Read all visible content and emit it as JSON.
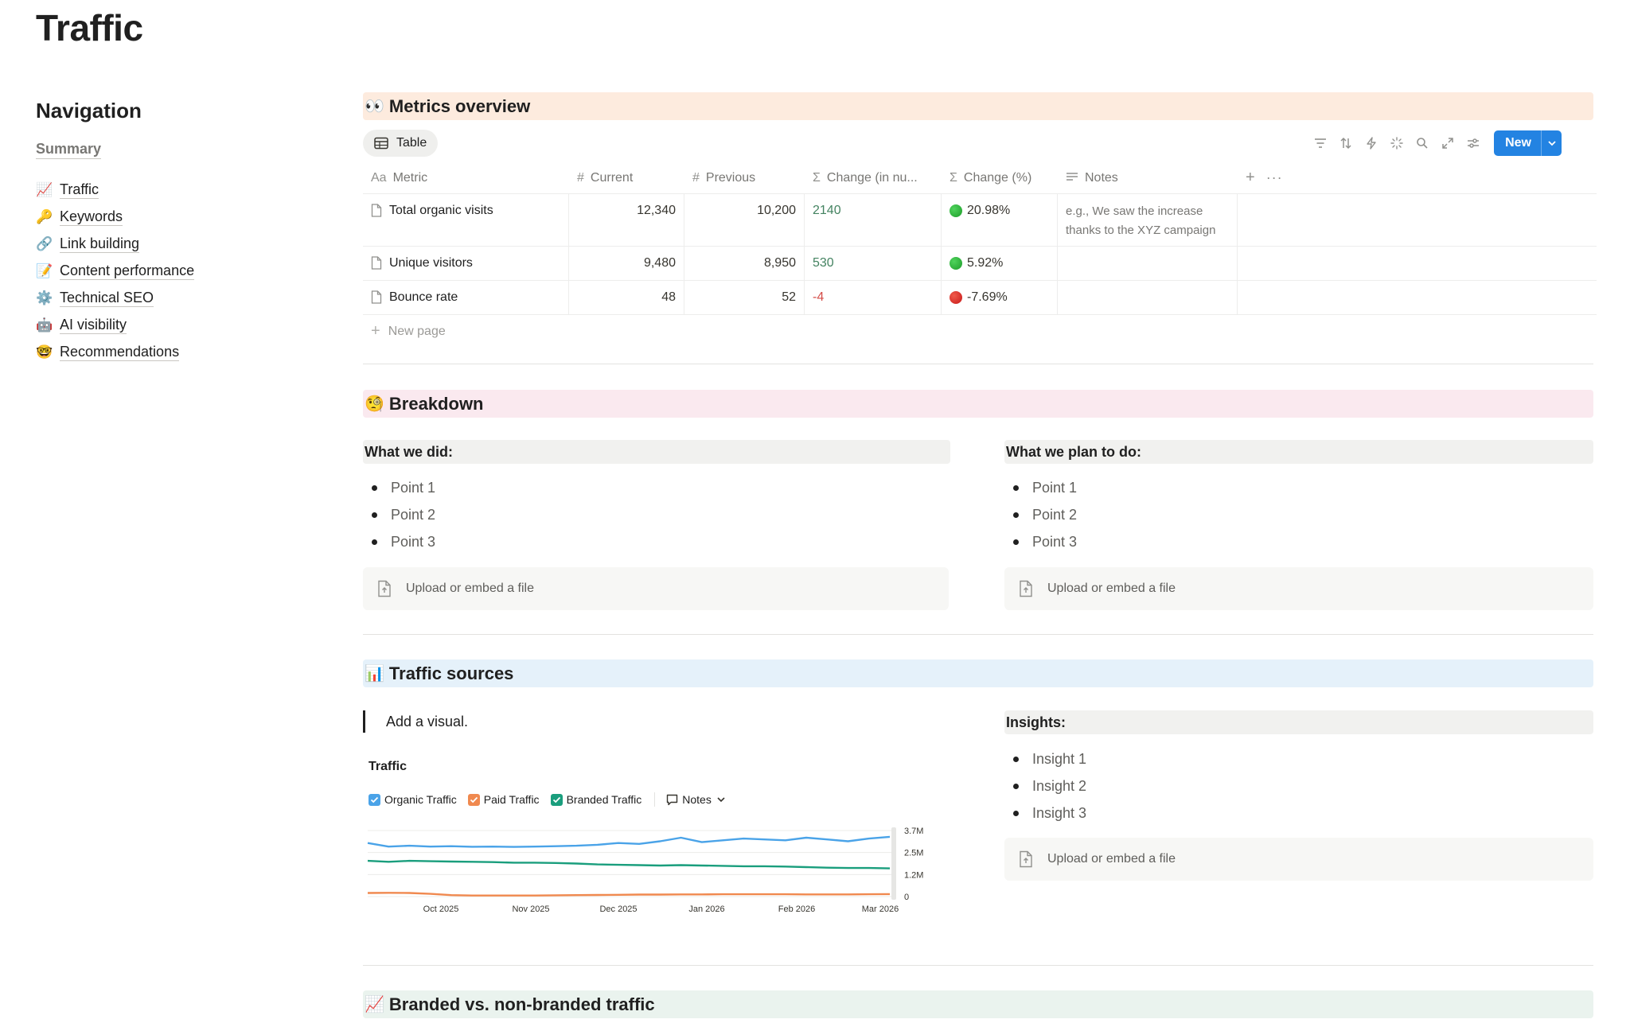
{
  "page": {
    "title": "Traffic"
  },
  "nav": {
    "title": "Navigation",
    "summary": "Summary",
    "items": [
      {
        "emoji": "📈",
        "label": "Traffic"
      },
      {
        "emoji": "🔑",
        "label": "Keywords"
      },
      {
        "emoji": "🔗",
        "label": "Link building"
      },
      {
        "emoji": "📝",
        "label": "Content performance"
      },
      {
        "emoji": "⚙️",
        "label": "Technical SEO"
      },
      {
        "emoji": "🤖",
        "label": "AI visibility"
      },
      {
        "emoji": "🤓",
        "label": "Recommendations"
      }
    ]
  },
  "metrics": {
    "header_emoji": "👀",
    "header": "Metrics overview",
    "view_tab": "Table",
    "new_button": "New",
    "columns": {
      "metric": "Metric",
      "current": "Current",
      "previous": "Previous",
      "change_num": "Change (in nu...",
      "change_pct": "Change (%)",
      "notes": "Notes"
    },
    "rows": [
      {
        "metric": "Total organic visits",
        "current": "12,340",
        "previous": "10,200",
        "change": "2140",
        "pct": "20.98%",
        "status": "green",
        "notes": "e.g., We saw the increase thanks to the XYZ campaign"
      },
      {
        "metric": "Unique visitors",
        "current": "9,480",
        "previous": "8,950",
        "change": "530",
        "pct": "5.92%",
        "status": "green",
        "notes": ""
      },
      {
        "metric": "Bounce rate",
        "current": "48",
        "previous": "52",
        "change": "-4",
        "pct": "-7.69%",
        "status": "red",
        "notes": ""
      }
    ],
    "new_page": "New page"
  },
  "breakdown": {
    "header_emoji": "🧐",
    "header": "Breakdown",
    "did_title": "What we did:",
    "did_points": [
      "Point 1",
      "Point 2",
      "Point 3"
    ],
    "plan_title": "What we plan to do:",
    "plan_points": [
      "Point 1",
      "Point 2",
      "Point 3"
    ],
    "upload_label": "Upload or embed a file"
  },
  "traffic_sources": {
    "header_emoji": "📊",
    "header": "Traffic sources",
    "quote": "Add a visual.",
    "insights_title": "Insights:",
    "insights": [
      "Insight 1",
      "Insight 2",
      "Insight 3"
    ],
    "upload_label": "Upload or embed a file"
  },
  "chart_data": {
    "type": "line",
    "title": "Traffic",
    "legend_notes": "Notes",
    "x_ticks": [
      "Oct 2025",
      "Nov 2025",
      "Dec 2025",
      "Jan 2026",
      "Feb 2026",
      "Mar 2026"
    ],
    "y_ticks": [
      "3.7M",
      "2.5M",
      "1.2M",
      "0"
    ],
    "ylim": [
      0,
      3700000
    ],
    "series": [
      {
        "name": "Organic Traffic",
        "color": "#4aa3e8",
        "values": [
          3000000,
          2800000,
          2850000,
          2800000,
          2820000,
          2790000,
          2800000,
          2780000,
          2800000,
          2820000,
          2850000,
          2900000,
          3000000,
          2950000,
          3100000,
          3300000,
          3050000,
          3150000,
          3250000,
          3200000,
          3150000,
          3300000,
          3200000,
          3100000,
          3250000,
          3350000
        ]
      },
      {
        "name": "Paid Traffic",
        "color": "#f0894f",
        "values": [
          200000,
          210000,
          200000,
          150000,
          80000,
          60000,
          60000,
          60000,
          60000,
          70000,
          80000,
          90000,
          100000,
          110000,
          110000,
          120000,
          120000,
          130000,
          130000,
          130000,
          130000,
          120000,
          120000,
          120000,
          130000,
          140000
        ]
      },
      {
        "name": "Branded Traffic",
        "color": "#1a9e7d",
        "values": [
          2000000,
          1950000,
          2000000,
          1980000,
          1960000,
          1950000,
          1930000,
          1900000,
          1900000,
          1880000,
          1850000,
          1800000,
          1780000,
          1760000,
          1740000,
          1760000,
          1740000,
          1720000,
          1700000,
          1700000,
          1680000,
          1650000,
          1620000,
          1600000,
          1600000,
          1580000
        ]
      }
    ]
  },
  "branded": {
    "header_emoji": "📈",
    "header": "Branded vs. non-branded traffic"
  }
}
